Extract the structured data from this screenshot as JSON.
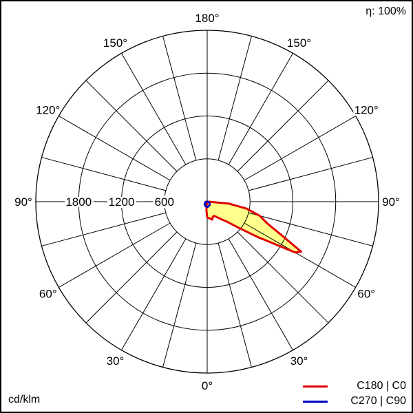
{
  "chart_data": {
    "type": "polar",
    "efficiency_label": "η: 100%",
    "units_label": "cd/klm",
    "ring_values": [
      600,
      1200,
      1800
    ],
    "ring_labels": [
      "600",
      "1200",
      "1800"
    ],
    "r_max": 2400,
    "angle_labels": {
      "bottom": "0°",
      "lower_left": [
        "30°",
        "60°"
      ],
      "left": "90°",
      "upper_left": [
        "120°",
        "150°"
      ],
      "top": "180°",
      "upper_right": [
        "150°",
        "120°"
      ],
      "right": "90°",
      "lower_right": [
        "60°",
        "30°"
      ]
    },
    "grid": true,
    "legend_position": "bottom-right",
    "series": [
      {
        "name": "C180 | C0",
        "color": "#e00000",
        "fill": "#ffff8c",
        "angles_deg": [
          0,
          5,
          10,
          15,
          20,
          25,
          30,
          35,
          40,
          45,
          50,
          55,
          60,
          62,
          65,
          70,
          75,
          80,
          85,
          90
        ],
        "values_c0": [
          220,
          230,
          240,
          260,
          230,
          220,
          240,
          280,
          330,
          400,
          560,
          860,
          1420,
          1490,
          1200,
          900,
          760,
          560,
          300,
          20
        ],
        "values_c180": [
          220,
          120,
          40,
          10,
          5,
          5,
          0,
          0,
          0,
          0,
          0,
          0,
          0,
          0,
          0,
          0,
          0,
          0,
          0,
          20
        ]
      },
      {
        "name": "C270 | C90",
        "color": "#0000c0",
        "angles_deg": [
          0,
          15,
          30,
          45,
          60,
          75,
          90
        ],
        "values_c270": [
          75,
          70,
          60,
          50,
          35,
          20,
          5
        ],
        "values_c90": [
          75,
          70,
          60,
          50,
          35,
          20,
          5
        ]
      }
    ]
  },
  "legend": {
    "items": [
      {
        "label": "C180 | C0",
        "color": "#e00000"
      },
      {
        "label": "C270 | C90",
        "color": "#0000c0"
      }
    ]
  }
}
